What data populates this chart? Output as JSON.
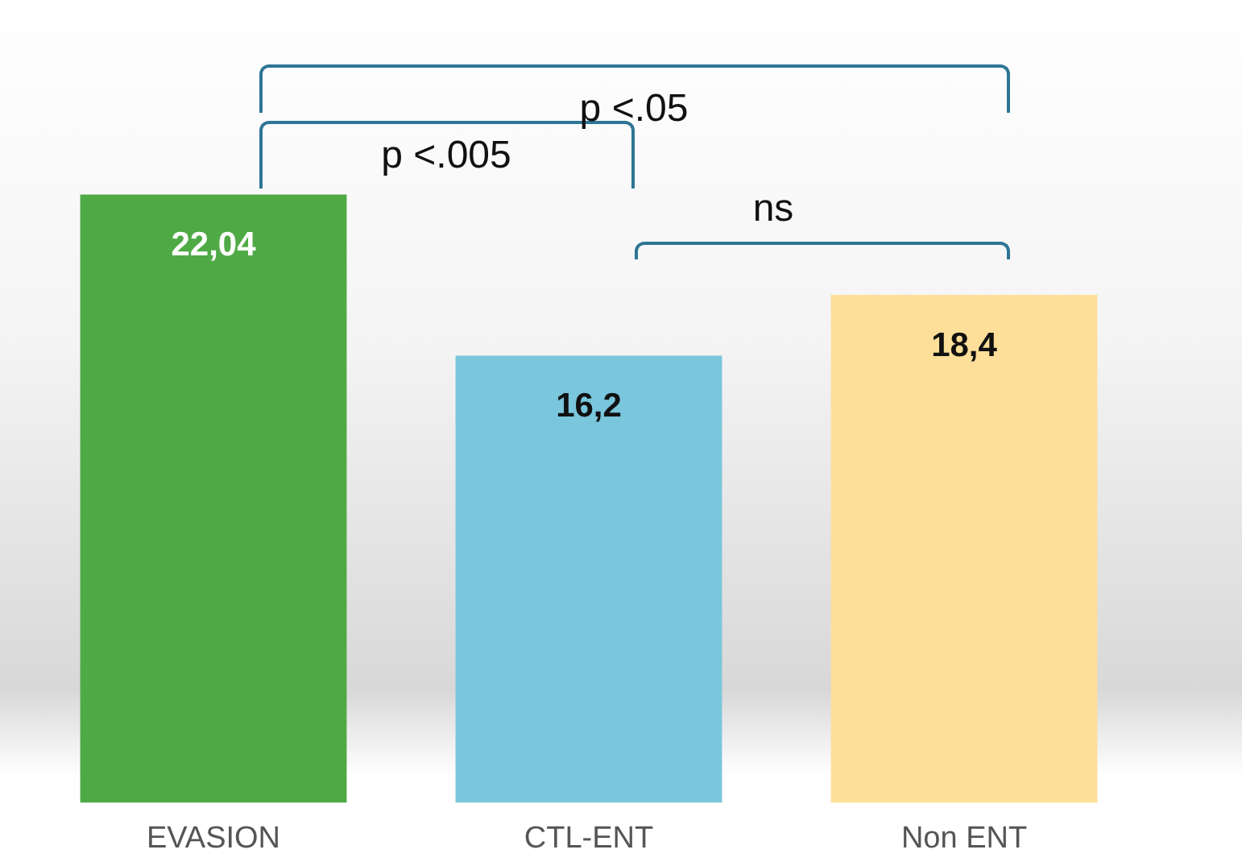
{
  "chart_data": {
    "type": "bar",
    "categories": [
      "EVASION",
      "CTL-ENT",
      "Non ENT"
    ],
    "values": [
      22.04,
      16.2,
      18.4
    ],
    "colors": [
      "#4faa46",
      "#7ac6dd",
      "#fddf99"
    ],
    "value_labels": [
      "22,04",
      "16,2",
      "18,4"
    ],
    "annotations": [
      "p <.005",
      "p <.05",
      "ns"
    ]
  }
}
